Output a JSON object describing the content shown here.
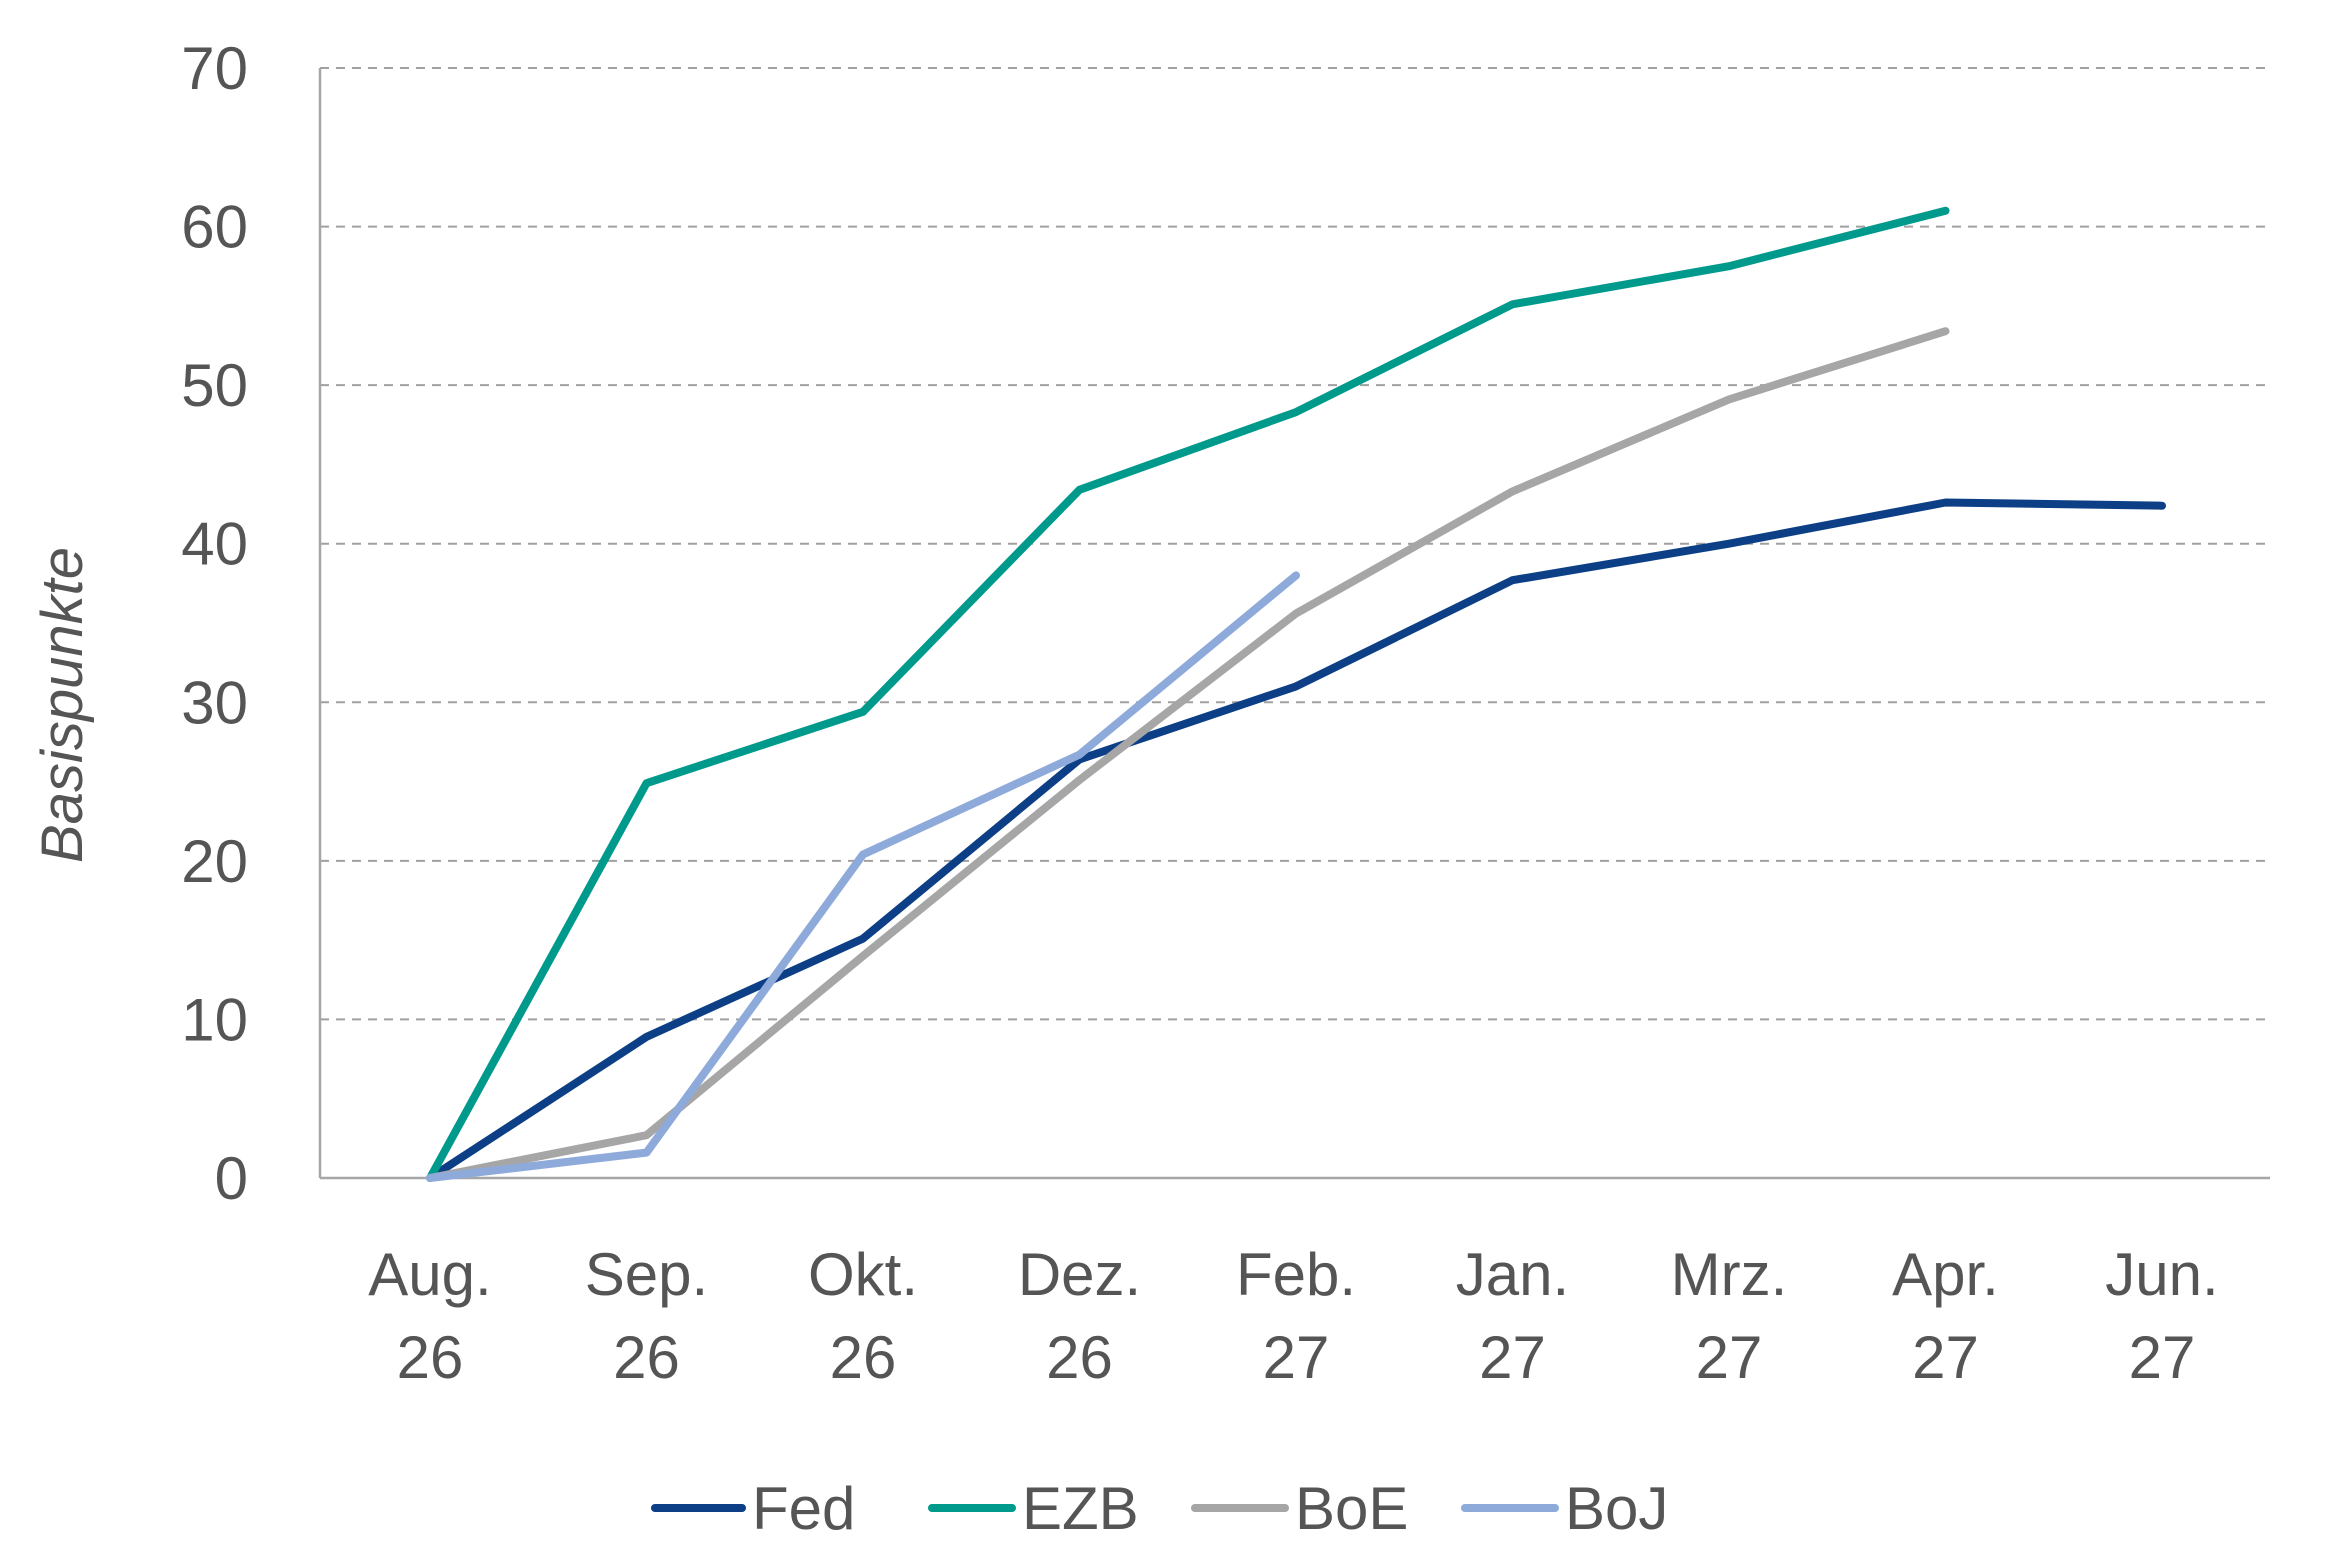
{
  "chart_data": {
    "type": "line",
    "ylabel": "Basispunkte",
    "xlabel": "",
    "ylim": [
      0,
      70
    ],
    "yticks": [
      "0",
      "10",
      "20",
      "30",
      "40",
      "50",
      "60",
      "70"
    ],
    "grid": "horizontal dashed",
    "legend_position": "bottom",
    "categories": [
      [
        "Aug.",
        "26"
      ],
      [
        "Sep.",
        "26"
      ],
      [
        "Okt.",
        "26"
      ],
      [
        "Dez.",
        "26"
      ],
      [
        "Feb.",
        "27"
      ],
      [
        "Jan.",
        "27"
      ],
      [
        "Mrz.",
        "27"
      ],
      [
        "Apr.",
        "27"
      ],
      [
        "Jun.",
        "27"
      ]
    ],
    "series": [
      {
        "name": "Fed",
        "color": "#0c3f86",
        "values": [
          0,
          8.9,
          15.1,
          26.4,
          31.0,
          37.7,
          40.0,
          42.6,
          42.4
        ]
      },
      {
        "name": "EZB",
        "color": "#009a8c",
        "values": [
          0,
          24.9,
          29.4,
          43.4,
          48.3,
          55.1,
          57.5,
          61.0,
          null
        ]
      },
      {
        "name": "BoE",
        "color": "#a6a6a6",
        "values": [
          0,
          2.7,
          14.0,
          25.1,
          35.6,
          43.3,
          49.1,
          53.4,
          null
        ]
      },
      {
        "name": "BoJ",
        "color": "#8eaadb",
        "values": [
          0,
          1.6,
          20.4,
          26.7,
          38.0,
          null,
          null,
          null,
          null
        ]
      }
    ]
  }
}
